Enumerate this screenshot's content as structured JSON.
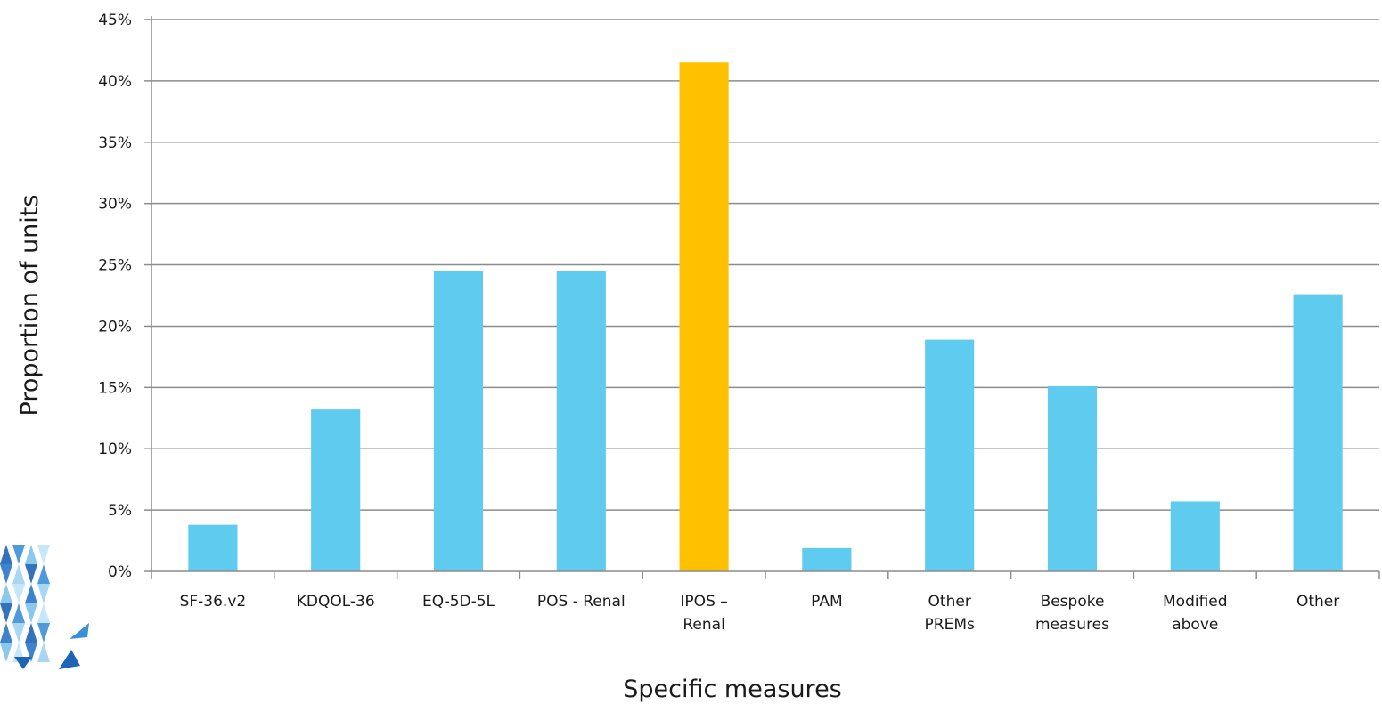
{
  "chart_data": {
    "type": "bar",
    "title": "",
    "xlabel": "Specific measures",
    "ylabel": "Proportion of units",
    "categories": [
      [
        "SF-36.v2"
      ],
      [
        "KDQOL-36"
      ],
      [
        "EQ-5D-5L"
      ],
      [
        "POS - Renal"
      ],
      [
        "IPOS –",
        "Renal"
      ],
      [
        "PAM"
      ],
      [
        "Other",
        "PREMs"
      ],
      [
        "Bespoke",
        "measures"
      ],
      [
        "Modified",
        "above"
      ],
      [
        "Other"
      ]
    ],
    "values": [
      3.8,
      13.2,
      24.5,
      24.5,
      41.5,
      1.9,
      18.9,
      15.1,
      5.7,
      22.6
    ],
    "bar_colors": [
      "#5ecbef",
      "#5ecbef",
      "#5ecbef",
      "#5ecbef",
      "#ffc000",
      "#5ecbef",
      "#5ecbef",
      "#5ecbef",
      "#5ecbef",
      "#5ecbef"
    ],
    "y_ticks": [
      "0%",
      "5%",
      "10%",
      "15%",
      "20%",
      "25%",
      "30%",
      "35%",
      "40%",
      "45%"
    ],
    "ylim": [
      0,
      45
    ],
    "y_unit": "%",
    "grid": true,
    "legend": "none"
  },
  "colors": {
    "bar_default": "#5ecbef",
    "bar_highlight": "#ffc000",
    "grid": "#8c8c8c",
    "axis": "#8c8c8c"
  },
  "logo": {
    "icon": "faceted-diamond-logo-icon"
  }
}
